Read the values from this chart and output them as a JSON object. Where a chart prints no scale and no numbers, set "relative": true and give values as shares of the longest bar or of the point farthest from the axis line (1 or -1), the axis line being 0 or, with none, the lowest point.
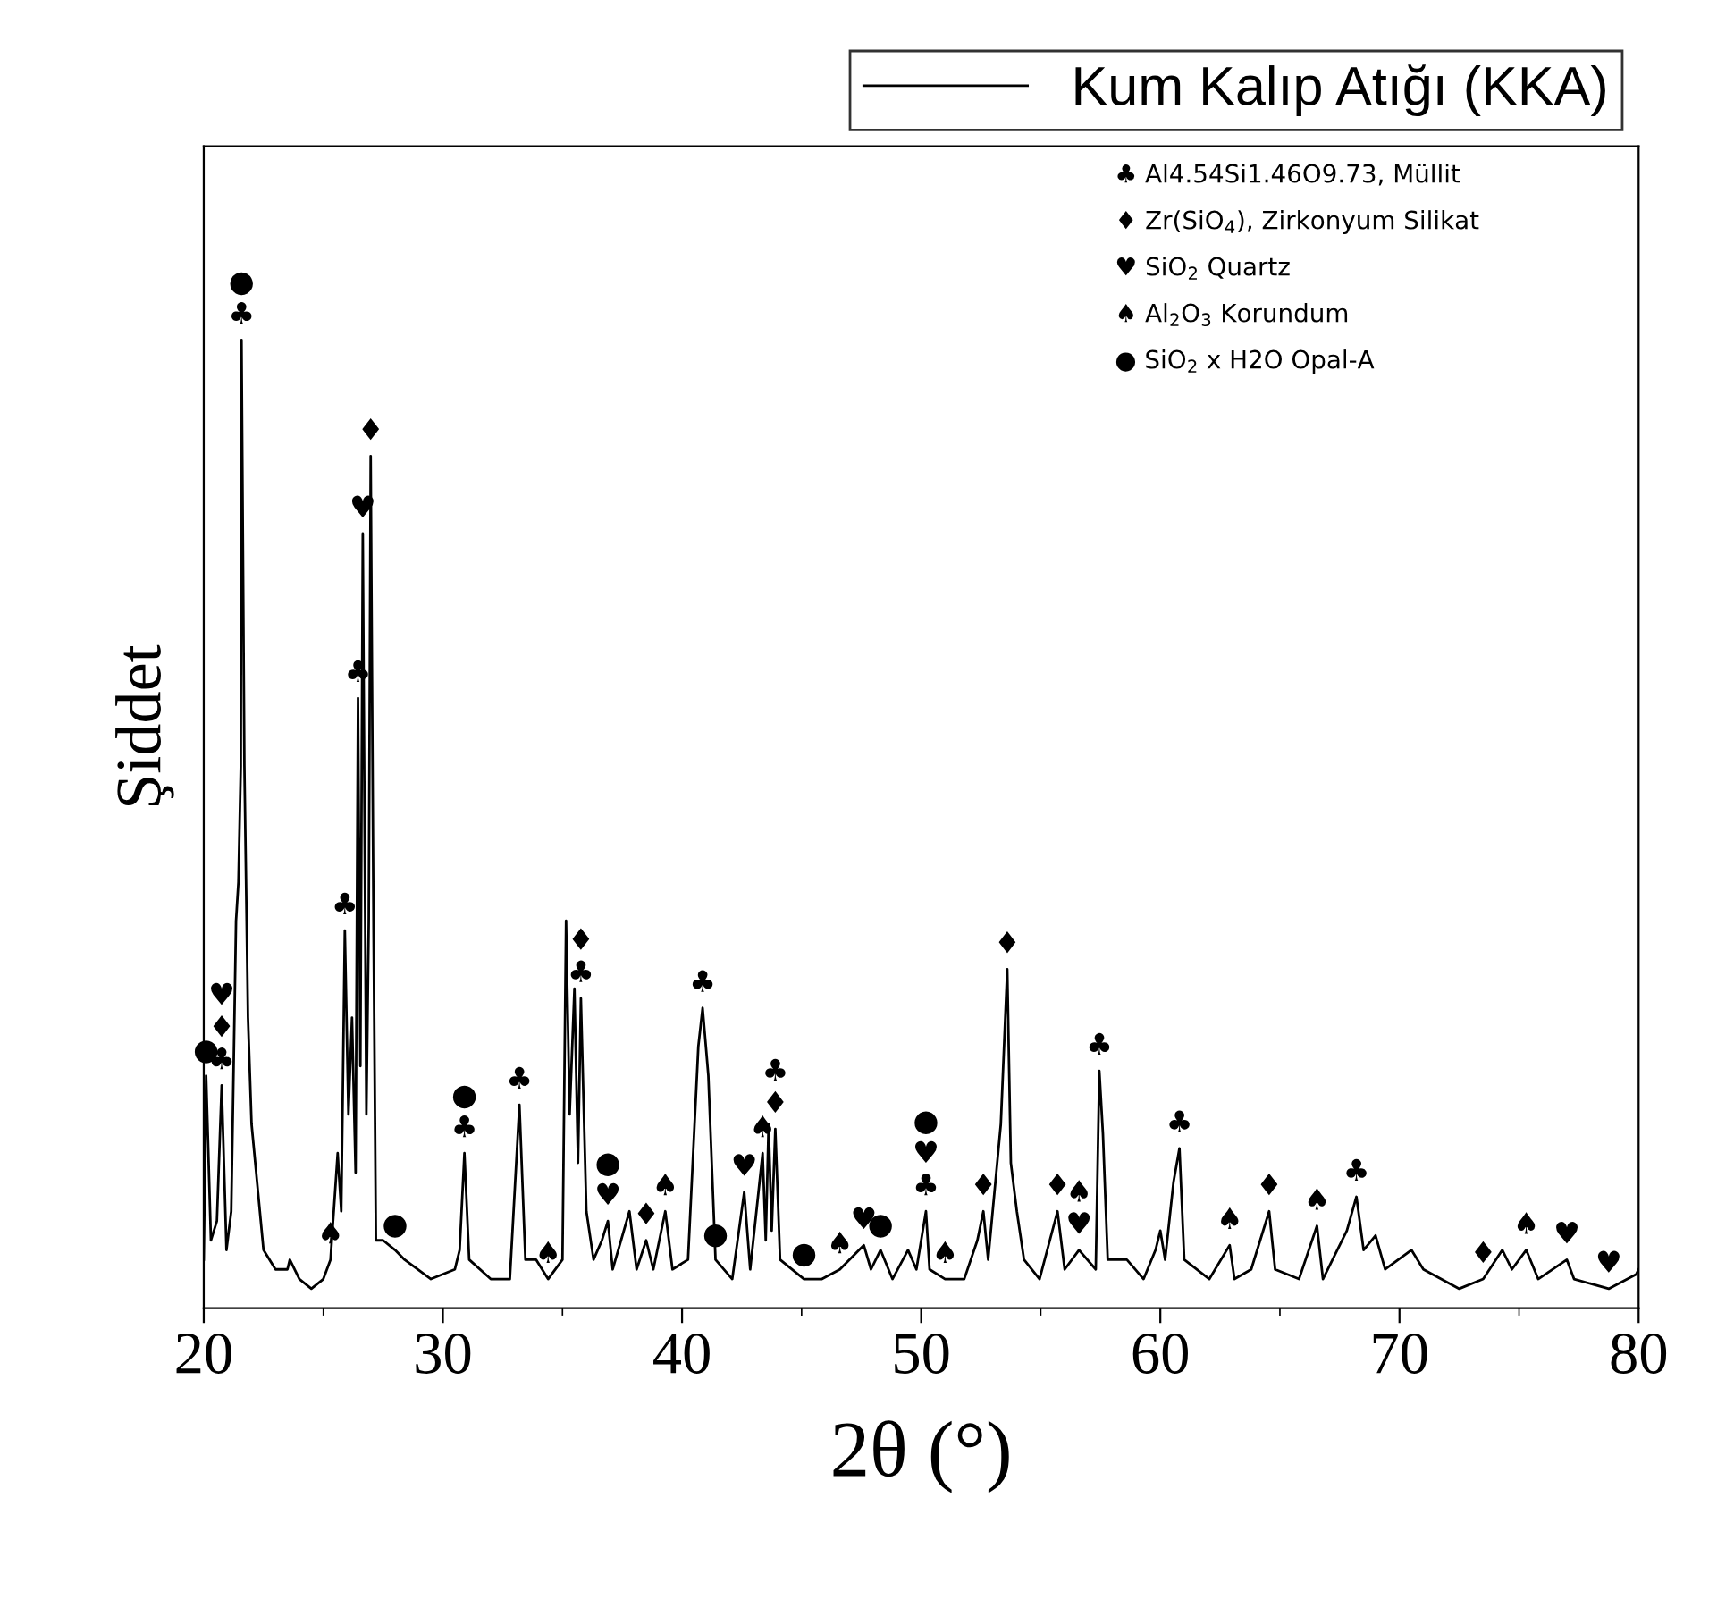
{
  "chart_data": {
    "type": "line",
    "relative": true,
    "xlabel": "2θ (°)",
    "ylabel": "Şiddet",
    "xlim": [
      20,
      80
    ],
    "xticks": [
      20,
      30,
      40,
      50,
      60,
      70,
      80
    ],
    "tick_labels": "x",
    "grid": false,
    "legend": "top right",
    "marker": "none",
    "line_style": "solid",
    "x": [
      20.0,
      20.1,
      20.3,
      20.55,
      20.75,
      20.95,
      21.15,
      21.35,
      21.45,
      21.55,
      21.58,
      21.7,
      21.85,
      22.0,
      22.5,
      23.0,
      23.5,
      23.6,
      24.0,
      24.5,
      25.0,
      25.3,
      25.6,
      25.75,
      25.9,
      26.05,
      26.2,
      26.35,
      26.45,
      26.55,
      26.65,
      26.8,
      26.9,
      26.98,
      27.1,
      27.2,
      27.5,
      28.0,
      28.4,
      29.5,
      30.5,
      30.7,
      30.9,
      31.1,
      32.0,
      32.8,
      33.2,
      33.45,
      33.9,
      34.4,
      35.0,
      35.15,
      35.3,
      35.5,
      35.65,
      35.77,
      36.0,
      36.3,
      36.65,
      36.9,
      37.1,
      37.8,
      38.1,
      38.5,
      38.8,
      39.3,
      39.6,
      40.25,
      40.68,
      40.86,
      41.1,
      41.4,
      42.1,
      42.6,
      42.85,
      43.37,
      43.5,
      43.62,
      43.75,
      43.9,
      44.1,
      45.1,
      45.85,
      46.6,
      47.6,
      47.9,
      48.3,
      48.8,
      49.45,
      49.8,
      50.2,
      50.35,
      51.0,
      51.8,
      52.35,
      52.6,
      52.8,
      53.33,
      53.6,
      53.75,
      54.0,
      54.3,
      54.95,
      55.7,
      56.0,
      56.6,
      57.3,
      57.45,
      57.6,
      57.8,
      58.6,
      59.3,
      59.8,
      60.0,
      60.2,
      60.55,
      60.8,
      61.0,
      62.05,
      62.9,
      63.1,
      63.8,
      64.55,
      64.8,
      65.8,
      66.55,
      66.8,
      67.8,
      68.2,
      68.5,
      69.0,
      69.4,
      70.5,
      71.0,
      72.5,
      73.5,
      74.3,
      74.7,
      75.3,
      75.8,
      77.0,
      77.3,
      78.75,
      79.9,
      80.0
    ],
    "series": [
      {
        "name": "Kum Kalıp Atığı (KKA)",
        "color": "#000000",
        "values": [
          0.05,
          0.24,
          0.07,
          0.09,
          0.23,
          0.06,
          0.1,
          0.4,
          0.44,
          0.56,
          1.0,
          0.56,
          0.3,
          0.19,
          0.06,
          0.04,
          0.04,
          0.05,
          0.03,
          0.02,
          0.03,
          0.05,
          0.16,
          0.1,
          0.39,
          0.2,
          0.3,
          0.14,
          0.63,
          0.25,
          0.8,
          0.2,
          0.4,
          0.88,
          0.39,
          0.07,
          0.07,
          0.06,
          0.05,
          0.03,
          0.04,
          0.06,
          0.16,
          0.05,
          0.03,
          0.03,
          0.21,
          0.05,
          0.05,
          0.03,
          0.05,
          0.4,
          0.2,
          0.33,
          0.15,
          0.32,
          0.1,
          0.05,
          0.07,
          0.09,
          0.04,
          0.1,
          0.04,
          0.07,
          0.04,
          0.1,
          0.04,
          0.05,
          0.27,
          0.31,
          0.24,
          0.05,
          0.03,
          0.12,
          0.04,
          0.16,
          0.07,
          0.19,
          0.08,
          0.185,
          0.05,
          0.03,
          0.03,
          0.04,
          0.065,
          0.04,
          0.06,
          0.03,
          0.06,
          0.04,
          0.1,
          0.04,
          0.03,
          0.03,
          0.07,
          0.1,
          0.05,
          0.19,
          0.35,
          0.15,
          0.1,
          0.05,
          0.03,
          0.1,
          0.04,
          0.06,
          0.04,
          0.245,
          0.18,
          0.05,
          0.05,
          0.03,
          0.06,
          0.08,
          0.05,
          0.13,
          0.165,
          0.05,
          0.03,
          0.065,
          0.03,
          0.04,
          0.1,
          0.04,
          0.03,
          0.085,
          0.03,
          0.08,
          0.115,
          0.06,
          0.075,
          0.04,
          0.06,
          0.04,
          0.02,
          0.03,
          0.06,
          0.04,
          0.06,
          0.03,
          0.05,
          0.03,
          0.02,
          0.035,
          0.04
        ]
      }
    ],
    "annotations": [
      "♣ Al4.54Si1.46O9.73, Müllit",
      "♦ Zr(SiO$_{4}$), Zirkonyum Silikat",
      "♥ SiO$_{2}$ Quartz",
      "♠ Al$_{2}$O$_{3}$ Korundum",
      "● SiO$_{2}$ x H2O Opal-A",
      {
        "text": "♣",
        "x": 20.75,
        "y": 0.23
      },
      {
        "text": "♦",
        "x": 20.75,
        "y": 0.23
      },
      {
        "text": "♥",
        "x": 20.75,
        "y": 0.23
      },
      {
        "text": "●",
        "x": 20.1,
        "y": 0.24
      },
      {
        "text": "♣",
        "x": 21.58,
        "y": 1.0
      },
      {
        "text": "●",
        "x": 21.58,
        "y": 1.0
      },
      {
        "text": "♠",
        "x": 25.3,
        "y": 0.05
      },
      {
        "text": "♣",
        "x": 25.9,
        "y": 0.39
      },
      {
        "text": "♣",
        "x": 26.45,
        "y": 0.63
      },
      {
        "text": "♥",
        "x": 26.65,
        "y": 0.8
      },
      {
        "text": "♦",
        "x": 26.98,
        "y": 0.88
      },
      {
        "text": "●",
        "x": 28.0,
        "y": 0.06
      },
      {
        "text": "♣",
        "x": 30.9,
        "y": 0.16
      },
      {
        "text": "●",
        "x": 30.9,
        "y": 0.16
      },
      {
        "text": "♣",
        "x": 33.2,
        "y": 0.21
      },
      {
        "text": "♠",
        "x": 34.4,
        "y": 0.03
      },
      {
        "text": "♣",
        "x": 35.77,
        "y": 0.32
      },
      {
        "text": "♦",
        "x": 35.77,
        "y": 0.32
      },
      {
        "text": "♥",
        "x": 36.9,
        "y": 0.09
      },
      {
        "text": "●",
        "x": 36.9,
        "y": 0.09
      },
      {
        "text": "♦",
        "x": 38.5,
        "y": 0.07
      },
      {
        "text": "♠",
        "x": 39.3,
        "y": 0.1
      },
      {
        "text": "♣",
        "x": 40.86,
        "y": 0.31
      },
      {
        "text": "●",
        "x": 41.4,
        "y": 0.05
      },
      {
        "text": "♥",
        "x": 42.6,
        "y": 0.12
      },
      {
        "text": "♠",
        "x": 43.37,
        "y": 0.16
      },
      {
        "text": "♦",
        "x": 43.9,
        "y": 0.185
      },
      {
        "text": "♣",
        "x": 43.9,
        "y": 0.185
      },
      {
        "text": "●",
        "x": 45.1,
        "y": 0.03
      },
      {
        "text": "♠",
        "x": 46.6,
        "y": 0.04
      },
      {
        "text": "♥",
        "x": 47.6,
        "y": 0.065
      },
      {
        "text": "●",
        "x": 48.3,
        "y": 0.06
      },
      {
        "text": "♣",
        "x": 50.2,
        "y": 0.1
      },
      {
        "text": "♥",
        "x": 50.2,
        "y": 0.1
      },
      {
        "text": "●",
        "x": 50.2,
        "y": 0.1
      },
      {
        "text": "♠",
        "x": 51.0,
        "y": 0.03
      },
      {
        "text": "♦",
        "x": 52.6,
        "y": 0.1
      },
      {
        "text": "♦",
        "x": 53.6,
        "y": 0.35
      },
      {
        "text": "♦",
        "x": 55.7,
        "y": 0.1
      },
      {
        "text": "♥",
        "x": 56.6,
        "y": 0.06
      },
      {
        "text": "♠",
        "x": 56.6,
        "y": 0.06
      },
      {
        "text": "♣",
        "x": 57.45,
        "y": 0.245
      },
      {
        "text": "♣",
        "x": 60.8,
        "y": 0.165
      },
      {
        "text": "♠",
        "x": 62.9,
        "y": 0.065
      },
      {
        "text": "♦",
        "x": 64.55,
        "y": 0.1
      },
      {
        "text": "♠",
        "x": 66.55,
        "y": 0.085
      },
      {
        "text": "♣",
        "x": 68.2,
        "y": 0.115
      },
      {
        "text": "♦",
        "x": 73.5,
        "y": 0.03
      },
      {
        "text": "♠",
        "x": 75.3,
        "y": 0.06
      },
      {
        "text": "♥",
        "x": 77.0,
        "y": 0.05
      },
      {
        "text": "♥",
        "x": 78.75,
        "y": 0.02
      }
    ]
  }
}
